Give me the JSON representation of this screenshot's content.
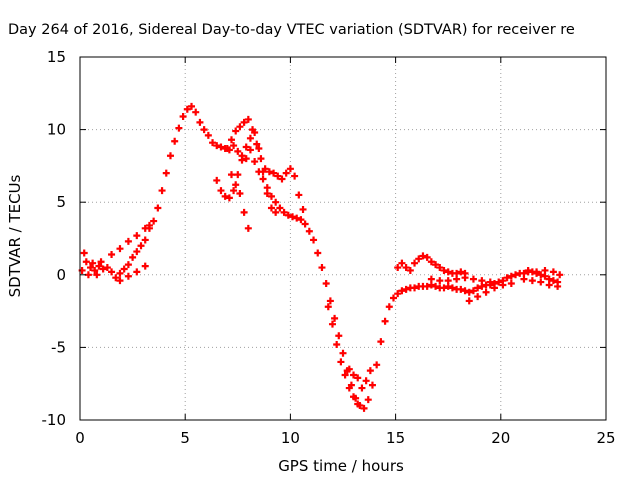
{
  "chart_data": {
    "type": "scatter",
    "title": "Day 264 of 2016, Sidereal Day-to-day VTEC variation (SDTVAR) for receiver re",
    "xlabel": "GPS time / hours",
    "ylabel": "SDTVAR / TECUs",
    "xlim": [
      0,
      25
    ],
    "ylim": [
      -10,
      15
    ],
    "x_ticks": [
      "0",
      "5",
      "10",
      "15",
      "20",
      "25"
    ],
    "y_ticks": [
      "-10",
      "-5",
      "0",
      "5",
      "10",
      "15"
    ],
    "grid": true,
    "marker": "+",
    "series": [
      {
        "color": "#ff0000",
        "points": [
          [
            0.1,
            0.3
          ],
          [
            0.3,
            0.9
          ],
          [
            0.5,
            0.5
          ],
          [
            0.7,
            0.3
          ],
          [
            0.9,
            0.6
          ],
          [
            1.1,
            0.4
          ],
          [
            1.3,
            0.5
          ],
          [
            1.5,
            0.2
          ],
          [
            1.7,
            -0.2
          ],
          [
            1.9,
            0.1
          ],
          [
            2.1,
            0.4
          ],
          [
            2.3,
            0.7
          ],
          [
            2.5,
            1.2
          ],
          [
            2.7,
            1.6
          ],
          [
            2.9,
            2.0
          ],
          [
            3.1,
            2.4
          ],
          [
            3.3,
            3.2
          ],
          [
            3.5,
            3.7
          ],
          [
            3.7,
            4.6
          ],
          [
            3.9,
            5.8
          ],
          [
            4.1,
            7.0
          ],
          [
            4.3,
            8.2
          ],
          [
            4.5,
            9.2
          ],
          [
            4.7,
            10.1
          ],
          [
            4.9,
            10.9
          ],
          [
            5.1,
            11.4
          ],
          [
            5.3,
            11.6
          ],
          [
            5.5,
            11.2
          ],
          [
            5.7,
            10.5
          ],
          [
            5.9,
            10.0
          ],
          [
            6.1,
            9.6
          ],
          [
            6.3,
            9.1
          ],
          [
            6.5,
            8.9
          ],
          [
            6.7,
            8.8
          ],
          [
            6.9,
            8.7
          ],
          [
            7.1,
            8.6
          ],
          [
            7.3,
            8.9
          ],
          [
            7.5,
            8.5
          ],
          [
            7.7,
            8.2
          ],
          [
            7.9,
            8.0
          ],
          [
            8.1,
            8.6
          ],
          [
            8.3,
            7.8
          ],
          [
            8.5,
            7.1
          ],
          [
            8.7,
            6.6
          ],
          [
            8.9,
            6.0
          ],
          [
            9.1,
            5.4
          ],
          [
            9.3,
            5.0
          ],
          [
            9.5,
            4.6
          ],
          [
            9.7,
            4.3
          ],
          [
            9.9,
            4.1
          ],
          [
            10.1,
            4.0
          ],
          [
            10.3,
            3.9
          ],
          [
            10.5,
            3.8
          ],
          [
            10.7,
            3.5
          ],
          [
            10.9,
            3.0
          ],
          [
            11.1,
            2.4
          ],
          [
            11.3,
            1.5
          ],
          [
            11.5,
            0.5
          ],
          [
            11.7,
            -0.6
          ],
          [
            11.9,
            -1.8
          ],
          [
            12.1,
            -3.0
          ],
          [
            12.3,
            -4.2
          ],
          [
            12.5,
            -5.4
          ],
          [
            12.7,
            -6.6
          ],
          [
            12.9,
            -7.6
          ],
          [
            13.1,
            -8.5
          ],
          [
            13.3,
            -9.0
          ],
          [
            13.5,
            -9.2
          ],
          [
            13.7,
            -8.6
          ],
          [
            13.9,
            -7.6
          ],
          [
            14.1,
            -6.2
          ],
          [
            14.3,
            -4.6
          ],
          [
            14.5,
            -3.2
          ],
          [
            14.7,
            -2.2
          ],
          [
            14.9,
            -1.6
          ],
          [
            15.1,
            -1.3
          ],
          [
            15.3,
            -1.1
          ],
          [
            15.5,
            -1.0
          ],
          [
            15.7,
            -0.9
          ],
          [
            15.9,
            -0.9
          ],
          [
            16.1,
            -0.8
          ],
          [
            16.3,
            -0.8
          ],
          [
            16.5,
            -0.8
          ],
          [
            16.7,
            -0.7
          ],
          [
            16.9,
            -0.8
          ],
          [
            17.1,
            -0.9
          ],
          [
            17.3,
            -0.9
          ],
          [
            17.5,
            -0.8
          ],
          [
            17.7,
            -0.9
          ],
          [
            17.9,
            -1.0
          ],
          [
            18.1,
            -1.0
          ],
          [
            18.3,
            -1.1
          ],
          [
            18.5,
            -1.2
          ],
          [
            18.7,
            -1.1
          ],
          [
            18.9,
            -0.9
          ],
          [
            19.1,
            -0.8
          ],
          [
            19.3,
            -0.7
          ],
          [
            19.5,
            -0.7
          ],
          [
            19.7,
            -0.6
          ],
          [
            19.9,
            -0.5
          ],
          [
            20.1,
            -0.4
          ],
          [
            20.3,
            -0.2
          ],
          [
            20.5,
            -0.1
          ],
          [
            20.7,
            0.0
          ],
          [
            20.9,
            0.1
          ],
          [
            21.1,
            0.1
          ],
          [
            21.3,
            0.2
          ],
          [
            21.5,
            0.2
          ],
          [
            21.7,
            0.1
          ],
          [
            21.9,
            0.0
          ],
          [
            22.1,
            -0.1
          ],
          [
            22.3,
            -0.3
          ],
          [
            22.5,
            -0.4
          ],
          [
            22.7,
            -0.5
          ],
          [
            1.5,
            1.4
          ],
          [
            1.9,
            1.8
          ],
          [
            2.3,
            2.3
          ],
          [
            2.7,
            2.7
          ],
          [
            3.1,
            3.2
          ],
          [
            3.3,
            3.4
          ],
          [
            1.9,
            -0.4
          ],
          [
            2.3,
            -0.1
          ],
          [
            2.7,
            0.2
          ],
          [
            3.1,
            0.6
          ],
          [
            0.2,
            1.5
          ],
          [
            0.4,
            0.0
          ],
          [
            0.6,
            0.8
          ],
          [
            0.8,
            0.0
          ],
          [
            1.0,
            0.9
          ],
          [
            6.5,
            6.5
          ],
          [
            6.7,
            5.8
          ],
          [
            6.9,
            5.4
          ],
          [
            7.1,
            5.3
          ],
          [
            7.3,
            5.8
          ],
          [
            7.5,
            6.9
          ],
          [
            7.7,
            7.9
          ],
          [
            7.9,
            8.8
          ],
          [
            8.1,
            9.4
          ],
          [
            8.3,
            9.8
          ],
          [
            8.5,
            8.7
          ],
          [
            8.7,
            7.1
          ],
          [
            8.9,
            5.6
          ],
          [
            9.1,
            4.6
          ],
          [
            9.3,
            4.3
          ],
          [
            7.0,
            8.7
          ],
          [
            7.2,
            9.3
          ],
          [
            7.4,
            9.9
          ],
          [
            7.6,
            10.2
          ],
          [
            7.8,
            10.5
          ],
          [
            8.0,
            10.7
          ],
          [
            8.2,
            10.0
          ],
          [
            8.4,
            9.0
          ],
          [
            8.6,
            8.0
          ],
          [
            8.8,
            7.3
          ],
          [
            9.0,
            7.1
          ],
          [
            9.2,
            7.0
          ],
          [
            9.4,
            6.8
          ],
          [
            9.6,
            6.6
          ],
          [
            9.8,
            7.0
          ],
          [
            10.0,
            7.3
          ],
          [
            10.2,
            6.8
          ],
          [
            10.4,
            5.5
          ],
          [
            10.6,
            4.5
          ],
          [
            7.2,
            6.9
          ],
          [
            7.4,
            6.2
          ],
          [
            7.6,
            5.6
          ],
          [
            7.8,
            4.3
          ],
          [
            8.0,
            3.2
          ],
          [
            11.8,
            -2.2
          ],
          [
            12.0,
            -3.4
          ],
          [
            12.2,
            -4.8
          ],
          [
            12.4,
            -6.0
          ],
          [
            12.6,
            -6.9
          ],
          [
            12.8,
            -7.8
          ],
          [
            13.0,
            -8.4
          ],
          [
            13.2,
            -8.9
          ],
          [
            12.8,
            -6.5
          ],
          [
            13.0,
            -6.9
          ],
          [
            13.2,
            -7.1
          ],
          [
            13.4,
            -7.8
          ],
          [
            13.6,
            -7.3
          ],
          [
            13.8,
            -6.6
          ],
          [
            15.1,
            0.5
          ],
          [
            15.3,
            0.8
          ],
          [
            15.5,
            0.5
          ],
          [
            15.7,
            0.3
          ],
          [
            15.9,
            0.8
          ],
          [
            16.1,
            1.1
          ],
          [
            16.3,
            1.3
          ],
          [
            16.5,
            1.2
          ],
          [
            16.7,
            0.9
          ],
          [
            16.9,
            0.7
          ],
          [
            17.1,
            0.5
          ],
          [
            17.3,
            0.3
          ],
          [
            17.5,
            0.2
          ],
          [
            17.7,
            0.1
          ],
          [
            17.9,
            0.1
          ],
          [
            18.1,
            0.2
          ],
          [
            18.3,
            0.1
          ],
          [
            16.7,
            -0.3
          ],
          [
            17.1,
            -0.4
          ],
          [
            17.5,
            -0.4
          ],
          [
            17.9,
            -0.3
          ],
          [
            18.3,
            -0.2
          ],
          [
            18.7,
            -0.3
          ],
          [
            19.1,
            -0.4
          ],
          [
            19.5,
            -0.5
          ],
          [
            18.5,
            -1.8
          ],
          [
            18.9,
            -1.5
          ],
          [
            19.3,
            -1.2
          ],
          [
            19.7,
            -0.9
          ],
          [
            20.1,
            -0.7
          ],
          [
            20.5,
            -0.6
          ],
          [
            21.1,
            -0.3
          ],
          [
            21.5,
            -0.4
          ],
          [
            21.9,
            -0.5
          ],
          [
            22.3,
            -0.7
          ],
          [
            22.7,
            -0.8
          ],
          [
            21.3,
            0.3
          ],
          [
            21.7,
            0.2
          ],
          [
            22.1,
            0.3
          ],
          [
            22.5,
            0.2
          ],
          [
            22.8,
            0.0
          ]
        ]
      }
    ]
  }
}
